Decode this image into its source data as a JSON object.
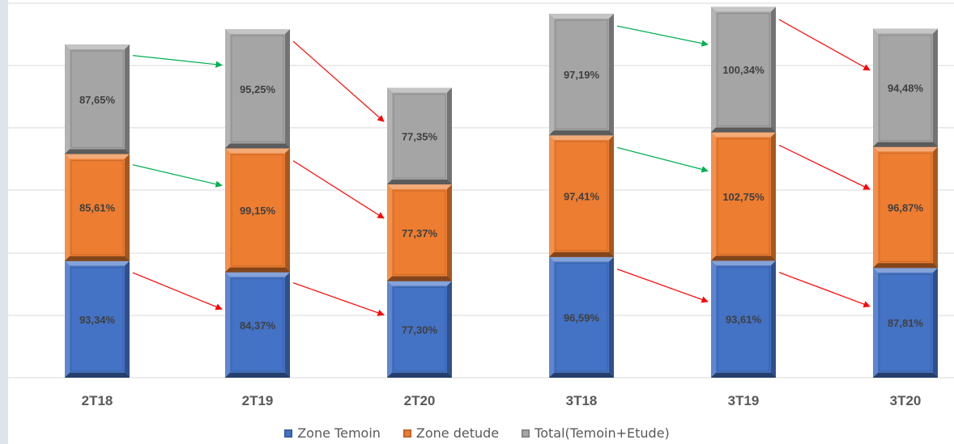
{
  "chart_data": {
    "type": "bar",
    "stacked": true,
    "categories": [
      "2T18",
      "2T19",
      "2T20",
      "3T18",
      "3T19",
      "3T20"
    ],
    "series": [
      {
        "name": "Zone Temoin",
        "color": "#4472c4",
        "values": [
          93.34,
          84.37,
          77.3,
          96.59,
          93.61,
          87.81
        ],
        "labels": [
          "93,34%",
          "84,37%",
          "77,30%",
          "96,59%",
          "93,61%",
          "87,81%"
        ]
      },
      {
        "name": "Zone detude",
        "color": "#ed7d31",
        "values": [
          85.61,
          99.15,
          77.37,
          97.41,
          102.75,
          96.87
        ],
        "labels": [
          "85,61%",
          "99,15%",
          "77,37%",
          "97,41%",
          "102,75%",
          "96,87%"
        ]
      },
      {
        "name": "Total(Temoin+Etude)",
        "color": "#a5a5a5",
        "values": [
          87.65,
          95.25,
          77.35,
          97.19,
          100.34,
          94.48
        ],
        "labels": [
          "87,65%",
          "95,25%",
          "77,35%",
          "97,19%",
          "100,34%",
          "94,48%"
        ]
      }
    ],
    "ylim": [
      0,
      300
    ],
    "grid": true,
    "legend_position": "bottom",
    "trend_colors": {
      "increase": "#00b050",
      "decrease": "#ff0000"
    }
  }
}
